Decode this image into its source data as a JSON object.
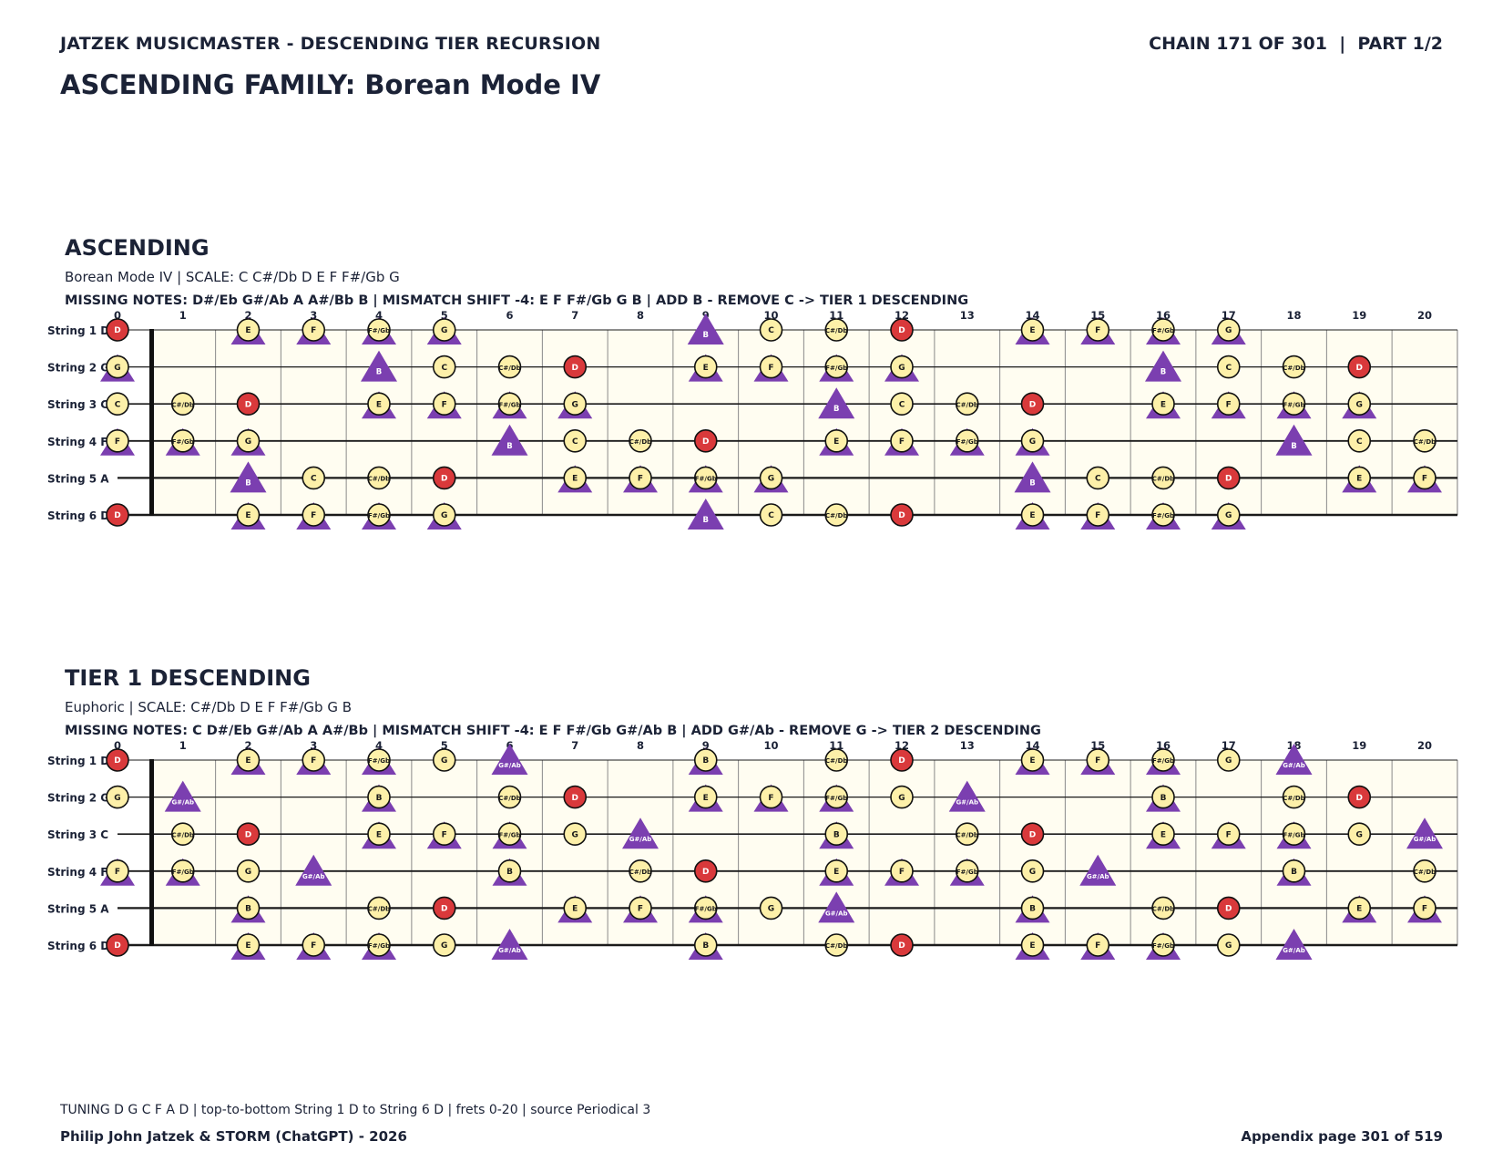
{
  "header": {
    "left": "JATZEK MUSICMASTER - DESCENDING TIER RECURSION",
    "right": "CHAIN 171 OF 301  |  PART 1/2",
    "title": "ASCENDING FAMILY: Borean Mode IV"
  },
  "tuning": [
    "D",
    "G",
    "C",
    "F",
    "A",
    "D"
  ],
  "string_labels": [
    "String 1 D",
    "String 2 G",
    "String 3 C",
    "String 4 F",
    "String 5 A",
    "String 6 D"
  ],
  "fret_numbers": [
    "0",
    "1",
    "2",
    "3",
    "4",
    "5",
    "6",
    "7",
    "8",
    "9",
    "10",
    "11",
    "12",
    "13",
    "14",
    "15",
    "16",
    "17",
    "18",
    "19",
    "20"
  ],
  "colors": {
    "root": "#d9393b",
    "scale": "#fdf0a9",
    "triangle": "#7b3fb0",
    "board": "#fffdf1"
  },
  "sections": [
    {
      "title": "ASCENDING",
      "subtitle": "Borean Mode IV  |  SCALE: C C#/Db D E F F#/Gb G",
      "missing": "MISSING NOTES: D#/Eb G#/Ab A A#/Bb B  |  MISMATCH SHIFT -4: E F F#/Gb G B  |  ADD B - REMOVE C -> TIER 1 DESCENDING",
      "root": "D",
      "scale": [
        "C",
        "C#/Db",
        "D",
        "E",
        "F",
        "F#/Gb",
        "G"
      ],
      "triangles": [
        "E",
        "F",
        "F#/Gb",
        "G",
        "B"
      ],
      "triangle_only": [
        "B"
      ]
    },
    {
      "title": "TIER 1 DESCENDING",
      "subtitle": "Euphoric  |  SCALE: C#/Db D E F F#/Gb G B",
      "missing": "MISSING NOTES: C D#/Eb G#/Ab A A#/Bb  |  MISMATCH SHIFT -4: E F F#/Gb G#/Ab B  |  ADD G#/Ab - REMOVE G -> TIER 2 DESCENDING",
      "root": "D",
      "scale": [
        "C#/Db",
        "D",
        "E",
        "F",
        "F#/Gb",
        "G",
        "B"
      ],
      "triangles": [
        "E",
        "F",
        "F#/Gb",
        "G#/Ab",
        "B"
      ],
      "triangle_only": [
        "G#/Ab"
      ]
    }
  ],
  "footer": {
    "note": "TUNING D G C F A D | top-to-bottom String 1 D to String 6 D | frets 0-20 | source Periodical 3",
    "left": "Philip John Jatzek & STORM (ChatGPT) - 2026",
    "right": "Appendix page 301 of 519"
  }
}
